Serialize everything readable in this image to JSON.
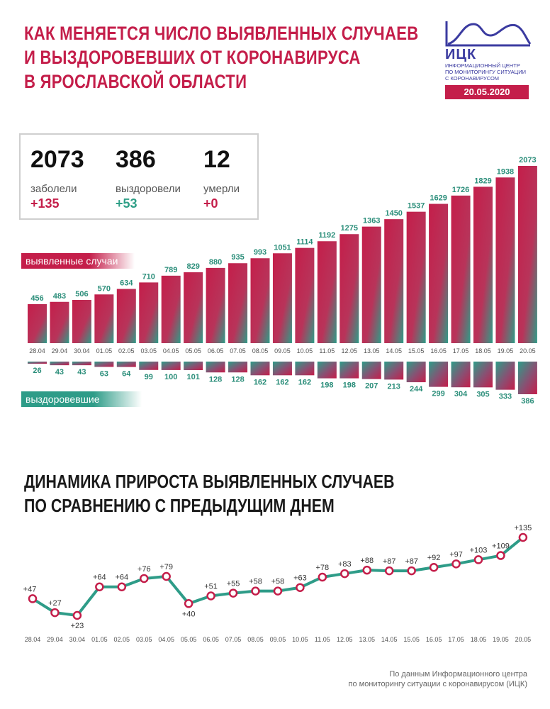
{
  "header": {
    "title_lines": [
      "КАК МЕНЯЕТСЯ ЧИСЛО ВЫЯВЛЕННЫХ СЛУЧАЕВ",
      "И ВЫЗДОРОВЕВШИХ ОТ КОРОНАВИРУСА",
      "В ЯРОСЛАВСКОЙ ОБЛАСТИ"
    ],
    "logo_name": "ИЦК",
    "logo_sub_lines": [
      "ИНФОРМАЦИОННЫЙ ЦЕНТР",
      "ПО МОНИТОРИНГУ СИТУАЦИИ",
      "С КОРОНАВИРУСОМ"
    ],
    "date": "20.05.2020",
    "colors": {
      "accent": "#c41e4a",
      "green": "#2e9c88",
      "logo": "#3b3ba0"
    }
  },
  "stats": {
    "cases": {
      "value": "2073",
      "label": "заболели",
      "delta": "+135"
    },
    "recovered": {
      "value": "386",
      "label": "выздоровели",
      "delta": "+53"
    },
    "deaths": {
      "value": "12",
      "label": "умерли",
      "delta": "+0"
    }
  },
  "legend": {
    "cases": "выявленные случаи",
    "recovered": "выздоровевшие"
  },
  "chart_data": [
    {
      "type": "bar",
      "title": "",
      "categories": [
        "28.04",
        "29.04",
        "30.04",
        "01.05",
        "02.05",
        "03.05",
        "04.05",
        "05.05",
        "06.05",
        "07.05",
        "08.05",
        "09.05",
        "10.05",
        "11.05",
        "12.05",
        "13.05",
        "14.05",
        "15.05",
        "16.05",
        "17.05",
        "18.05",
        "19.05",
        "20.05"
      ],
      "series": [
        {
          "name": "выявленные случаи",
          "values": [
            456,
            483,
            506,
            570,
            634,
            710,
            789,
            829,
            880,
            935,
            993,
            1051,
            1114,
            1192,
            1275,
            1363,
            1450,
            1537,
            1629,
            1726,
            1829,
            1938,
            2073
          ]
        },
        {
          "name": "выздоровевшие",
          "values": [
            26,
            43,
            43,
            63,
            64,
            99,
            100,
            101,
            128,
            128,
            162,
            162,
            162,
            198,
            198,
            207,
            213,
            244,
            299,
            304,
            305,
            333,
            386
          ]
        }
      ]
    },
    {
      "type": "line",
      "title_lines": [
        "ДИНАМИКА ПРИРОСТА ВЫЯВЛЕННЫХ СЛУЧАЕВ",
        "ПО СРАВНЕНИЮ С ПРЕДЫДУЩИМ ДНЕМ"
      ],
      "x": [
        "28.04",
        "29.04",
        "30.04",
        "01.05",
        "02.05",
        "03.05",
        "04.05",
        "05.05",
        "06.05",
        "07.05",
        "08.05",
        "09.05",
        "10.05",
        "11.05",
        "12.05",
        "13.05",
        "14.05",
        "15.05",
        "16.05",
        "17.05",
        "18.05",
        "19.05",
        "20.05"
      ],
      "values": [
        47,
        27,
        23,
        64,
        64,
        76,
        79,
        40,
        51,
        55,
        58,
        58,
        63,
        78,
        83,
        88,
        87,
        87,
        92,
        97,
        103,
        109,
        135
      ],
      "labels": [
        "+47",
        "+27",
        "+23",
        "+64",
        "+64",
        "+76",
        "+79",
        "+40",
        "+51",
        "+55",
        "+58",
        "+58",
        "+63",
        "+78",
        "+83",
        "+88",
        "+87",
        "+87",
        "+92",
        "+97",
        "+103",
        "+109",
        "+135"
      ]
    }
  ],
  "source_lines": [
    "По данным Информационного центра",
    "по мониторингу ситуации с коронавирусом (ИЦК)"
  ]
}
